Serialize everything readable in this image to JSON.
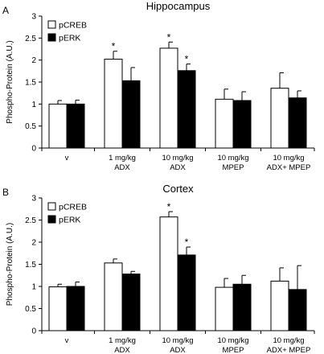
{
  "chart_data": [
    {
      "type": "bar",
      "panel_label": "A",
      "title": "Hippocampus",
      "ylabel": "Phospho-Protein (A.U.)",
      "ylim": [
        0,
        3
      ],
      "yticks": [
        "0",
        "0.5",
        "1",
        "1.5",
        "2",
        "2.5",
        "3"
      ],
      "categories": [
        [
          "v"
        ],
        [
          "1 mg/kg",
          "ADX"
        ],
        [
          "10 mg/kg",
          "ADX"
        ],
        [
          "10 mg/kg",
          "MPEP"
        ],
        [
          "10 mg/kg",
          "ADX+ MPEP"
        ]
      ],
      "series": [
        {
          "name": "pCREB",
          "color": "#ffffff",
          "values": [
            1.0,
            2.02,
            2.27,
            1.11,
            1.36
          ],
          "errors": [
            0.08,
            0.18,
            0.14,
            0.23,
            0.35
          ],
          "significant": [
            false,
            true,
            true,
            false,
            false
          ]
        },
        {
          "name": "pERK",
          "color": "#000000",
          "values": [
            1.0,
            1.53,
            1.76,
            1.08,
            1.14
          ],
          "errors": [
            0.09,
            0.3,
            0.15,
            0.2,
            0.16
          ],
          "significant": [
            false,
            false,
            true,
            false,
            false
          ]
        }
      ],
      "significance_marker": "*",
      "legend_position": "top-left"
    },
    {
      "type": "bar",
      "panel_label": "B",
      "title": "Cortex",
      "ylabel": "Phospho-Protein (A.U.)",
      "ylim": [
        0,
        3
      ],
      "yticks": [
        "0",
        "0.5",
        "1",
        "1.5",
        "2",
        "2.5",
        "3"
      ],
      "categories": [
        [
          "v"
        ],
        [
          "1 mg/kg",
          "ADX"
        ],
        [
          "10 mg/kg",
          "ADX"
        ],
        [
          "10 mg/kg",
          "MPEP"
        ],
        [
          "10 mg/kg",
          "ADX+ MPEP"
        ]
      ],
      "series": [
        {
          "name": "pCREB",
          "color": "#ffffff",
          "values": [
            0.99,
            1.53,
            2.57,
            0.98,
            1.12
          ],
          "errors": [
            0.06,
            0.09,
            0.12,
            0.2,
            0.3
          ],
          "significant": [
            false,
            false,
            true,
            false,
            false
          ]
        },
        {
          "name": "pERK",
          "color": "#000000",
          "values": [
            1.0,
            1.28,
            1.71,
            1.05,
            0.93
          ],
          "errors": [
            0.1,
            0.06,
            0.18,
            0.2,
            0.54
          ],
          "significant": [
            false,
            false,
            true,
            false,
            false
          ]
        }
      ],
      "significance_marker": "*",
      "legend_position": "top-left"
    }
  ]
}
